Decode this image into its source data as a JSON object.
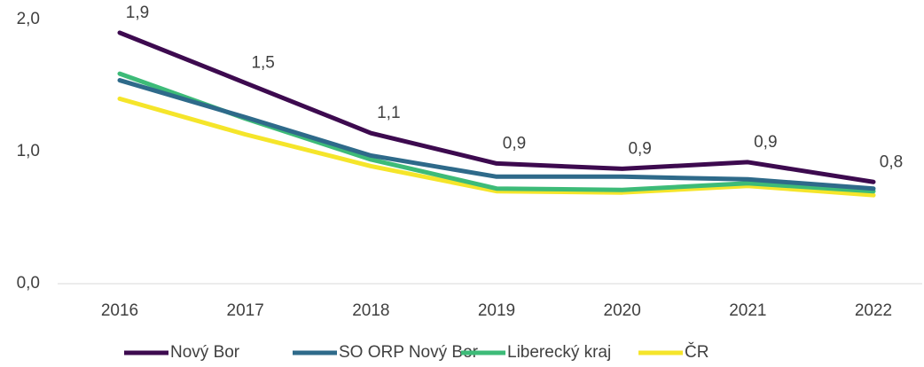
{
  "chart_data": {
    "type": "line",
    "categories": [
      "2016",
      "2017",
      "2018",
      "2019",
      "2020",
      "2021",
      "2022"
    ],
    "series": [
      {
        "name": "Nový Bor",
        "color": "#3d0a4f",
        "values": [
          1.9,
          1.52,
          1.14,
          0.91,
          0.87,
          0.92,
          0.77
        ],
        "value_labels": [
          "1,9",
          "1,5",
          "1,1",
          "0,9",
          "0,9",
          "0,9",
          "0,8"
        ]
      },
      {
        "name": "SO ORP Nový Bor",
        "color": "#2e6a8a",
        "values": [
          1.54,
          1.26,
          0.97,
          0.81,
          0.81,
          0.79,
          0.72
        ]
      },
      {
        "name": "Liberecký kraj",
        "color": "#3dbb78",
        "values": [
          1.59,
          1.25,
          0.94,
          0.72,
          0.71,
          0.76,
          0.7
        ]
      },
      {
        "name": "ČR",
        "color": "#f5e52a",
        "values": [
          1.4,
          1.13,
          0.89,
          0.7,
          0.69,
          0.74,
          0.67
        ]
      }
    ],
    "ylim": [
      0,
      2
    ],
    "yticks": [
      {
        "value": 0,
        "label": "0,0"
      },
      {
        "value": 1,
        "label": "1,0"
      },
      {
        "value": 2,
        "label": "2,0"
      }
    ],
    "legend": "bottom"
  }
}
